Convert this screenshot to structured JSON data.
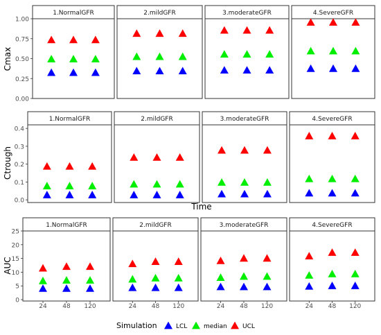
{
  "legend": {
    "title": "Simulation",
    "items": [
      {
        "label": "LCL",
        "color": "#0000ff"
      },
      {
        "label": "median",
        "color": "#00ee00"
      },
      {
        "label": "UCL",
        "color": "#ff0000"
      }
    ]
  },
  "chart_data": [
    {
      "type": "scatter",
      "ylabel": "Cmax",
      "xlabel": "",
      "ylim": [
        0,
        1
      ],
      "yticks": [
        0.0,
        0.25,
        0.5,
        0.75,
        1.0
      ],
      "ytick_labels": [
        "0.00",
        "0.25",
        "0.50",
        "0.75",
        "1.00"
      ],
      "x": [
        24,
        48,
        120
      ],
      "xtick_labels": [],
      "facets": [
        {
          "label": "1.NormalGFR",
          "series": [
            {
              "name": "LCL",
              "values": [
                0.33,
                0.33,
                0.33
              ]
            },
            {
              "name": "median",
              "values": [
                0.5,
                0.5,
                0.5
              ]
            },
            {
              "name": "UCL",
              "values": [
                0.74,
                0.74,
                0.74
              ]
            }
          ]
        },
        {
          "label": "2.mildGFR",
          "series": [
            {
              "name": "LCL",
              "values": [
                0.35,
                0.35,
                0.35
              ]
            },
            {
              "name": "median",
              "values": [
                0.53,
                0.53,
                0.53
              ]
            },
            {
              "name": "UCL",
              "values": [
                0.82,
                0.82,
                0.82
              ]
            }
          ]
        },
        {
          "label": "3.moderateGFR",
          "series": [
            {
              "name": "LCL",
              "values": [
                0.36,
                0.36,
                0.36
              ]
            },
            {
              "name": "median",
              "values": [
                0.56,
                0.56,
                0.56
              ]
            },
            {
              "name": "UCL",
              "values": [
                0.86,
                0.86,
                0.86
              ]
            }
          ]
        },
        {
          "label": "4.SevereGFR",
          "series": [
            {
              "name": "LCL",
              "values": [
                0.38,
                0.38,
                0.38
              ]
            },
            {
              "name": "median",
              "values": [
                0.6,
                0.6,
                0.6
              ]
            },
            {
              "name": "UCL",
              "values": [
                0.96,
                0.96,
                0.96
              ]
            }
          ]
        }
      ]
    },
    {
      "type": "scatter",
      "ylabel": "Ctrough",
      "xlabel": "Time",
      "ylim": [
        -0.015,
        0.42
      ],
      "yticks": [
        0.0,
        0.1,
        0.2,
        0.3,
        0.4
      ],
      "ytick_labels": [
        "0.0",
        "0.1",
        "0.2",
        "0.3",
        "0.4"
      ],
      "x": [
        24,
        48,
        120
      ],
      "xtick_labels": [],
      "facets": [
        {
          "label": "1.NormalGFR",
          "series": [
            {
              "name": "LCL",
              "values": [
                0.03,
                0.03,
                0.03
              ]
            },
            {
              "name": "median",
              "values": [
                0.08,
                0.08,
                0.08
              ]
            },
            {
              "name": "UCL",
              "values": [
                0.19,
                0.19,
                0.19
              ]
            }
          ]
        },
        {
          "label": "2.mildGFR",
          "series": [
            {
              "name": "LCL",
              "values": [
                0.03,
                0.03,
                0.03
              ]
            },
            {
              "name": "median",
              "values": [
                0.09,
                0.09,
                0.09
              ]
            },
            {
              "name": "UCL",
              "values": [
                0.24,
                0.24,
                0.24
              ]
            }
          ]
        },
        {
          "label": "3.moderateGFR",
          "series": [
            {
              "name": "LCL",
              "values": [
                0.035,
                0.035,
                0.035
              ]
            },
            {
              "name": "median",
              "values": [
                0.1,
                0.1,
                0.1
              ]
            },
            {
              "name": "UCL",
              "values": [
                0.28,
                0.28,
                0.28
              ]
            }
          ]
        },
        {
          "label": "4.SevereGFR",
          "series": [
            {
              "name": "LCL",
              "values": [
                0.04,
                0.04,
                0.04
              ]
            },
            {
              "name": "median",
              "values": [
                0.12,
                0.12,
                0.12
              ]
            },
            {
              "name": "UCL",
              "values": [
                0.36,
                0.36,
                0.36
              ]
            }
          ]
        }
      ]
    },
    {
      "type": "scatter",
      "ylabel": "AUC",
      "xlabel": "",
      "ylim": [
        -0.5,
        25
      ],
      "yticks": [
        0,
        5,
        10,
        15,
        20,
        25
      ],
      "ytick_labels": [
        "0",
        "5",
        "10",
        "15",
        "20",
        "25"
      ],
      "x": [
        24,
        48,
        120
      ],
      "xtick_labels": [
        "24",
        "48",
        "120"
      ],
      "facets": [
        {
          "label": "1.NormalGFR",
          "series": [
            {
              "name": "LCL",
              "values": [
                4.2,
                4.2,
                4.2
              ]
            },
            {
              "name": "median",
              "values": [
                7.0,
                7.2,
                7.2
              ]
            },
            {
              "name": "UCL",
              "values": [
                11.6,
                12.2,
                12.2
              ]
            }
          ]
        },
        {
          "label": "2.mildGFR",
          "series": [
            {
              "name": "LCL",
              "values": [
                4.5,
                4.5,
                4.5
              ]
            },
            {
              "name": "median",
              "values": [
                7.6,
                8.0,
                8.0
              ]
            },
            {
              "name": "UCL",
              "values": [
                13.2,
                14.0,
                14.0
              ]
            }
          ]
        },
        {
          "label": "3.moderateGFR",
          "series": [
            {
              "name": "LCL",
              "values": [
                4.8,
                4.8,
                4.8
              ]
            },
            {
              "name": "median",
              "values": [
                8.2,
                8.6,
                8.6
              ]
            },
            {
              "name": "UCL",
              "values": [
                14.3,
                15.2,
                15.2
              ]
            }
          ]
        },
        {
          "label": "4.SevereGFR",
          "series": [
            {
              "name": "LCL",
              "values": [
                5.0,
                5.2,
                5.2
              ]
            },
            {
              "name": "median",
              "values": [
                9.0,
                9.5,
                9.5
              ]
            },
            {
              "name": "UCL",
              "values": [
                16.0,
                17.3,
                17.3
              ]
            }
          ]
        }
      ]
    }
  ]
}
